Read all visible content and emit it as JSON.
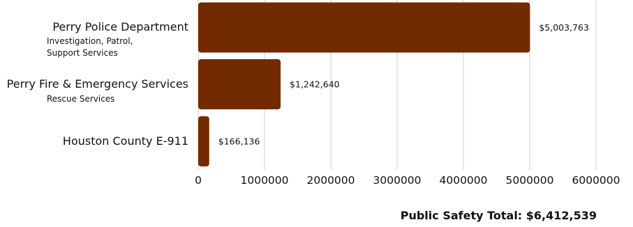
{
  "chart_data": {
    "type": "bar",
    "orientation": "horizontal",
    "categories": [
      {
        "name": "Perry Police Department",
        "subtitle": [
          "Investigation, Patrol,",
          "Support Services"
        ]
      },
      {
        "name": "Perry Fire & Emergency Services",
        "subtitle": [
          "Rescue Services"
        ]
      },
      {
        "name": "Houston County E-911",
        "subtitle": []
      }
    ],
    "values": [
      5003763,
      1242640,
      166136
    ],
    "data_labels": [
      "$5,003,763",
      "$1,242,640",
      "$166,136"
    ],
    "xlim": [
      0,
      6000000
    ],
    "x_ticks": [
      0,
      1000000,
      2000000,
      3000000,
      4000000,
      5000000,
      6000000
    ],
    "x_tick_labels": [
      "0",
      "1000000",
      "2000000",
      "3000000",
      "4000000",
      "5000000",
      "6000000"
    ],
    "grid": "vertical",
    "bar_color": "#722a00",
    "grid_color": "#cfcfcf"
  },
  "total_label": "Public Safety Total: $6,412,539"
}
